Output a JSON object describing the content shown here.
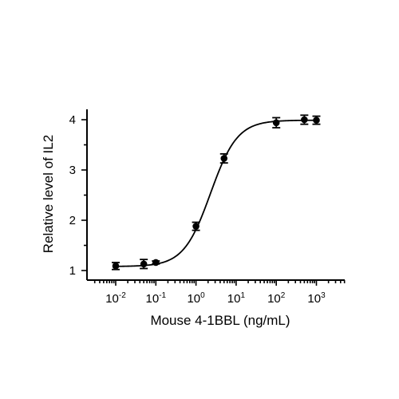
{
  "chart_data": {
    "type": "scatter",
    "xlabel": "Mouse 4-1BBL (ng/mL)",
    "ylabel": "Relative level of IL2",
    "x_scale": "log",
    "xlim": [
      0.0025,
      3000
    ],
    "ylim": [
      0.8,
      4.2
    ],
    "x_ticks": [
      0.01,
      0.1,
      1,
      10,
      100,
      1000
    ],
    "x_tick_labels": [
      {
        "base": "10",
        "exp": "-2"
      },
      {
        "base": "10",
        "exp": "-1"
      },
      {
        "base": "10",
        "exp": "0"
      },
      {
        "base": "10",
        "exp": "1"
      },
      {
        "base": "10",
        "exp": "2"
      },
      {
        "base": "10",
        "exp": "3"
      }
    ],
    "y_ticks": [
      1,
      2,
      3,
      4
    ],
    "y_tick_labels": [
      "1",
      "2",
      "3",
      "4"
    ],
    "grid": false,
    "series": [
      {
        "points": [
          {
            "x": 0.01,
            "y": 1.09,
            "err": 0.07
          },
          {
            "x": 0.05,
            "y": 1.13,
            "err": 0.09
          },
          {
            "x": 0.1,
            "y": 1.16,
            "err": 0.03
          },
          {
            "x": 1,
            "y": 1.88,
            "err": 0.08
          },
          {
            "x": 5,
            "y": 3.23,
            "err": 0.09
          },
          {
            "x": 100,
            "y": 3.94,
            "err": 0.1
          },
          {
            "x": 500,
            "y": 4.0,
            "err": 0.09
          },
          {
            "x": 1000,
            "y": 3.99,
            "err": 0.08
          }
        ],
        "fit": {
          "model": "4PL",
          "bottom": 1.08,
          "top": 3.99,
          "ec50": 2.3,
          "hill": 1.3
        }
      }
    ],
    "colors": {
      "line": "#000000",
      "marker": "#000000"
    }
  }
}
